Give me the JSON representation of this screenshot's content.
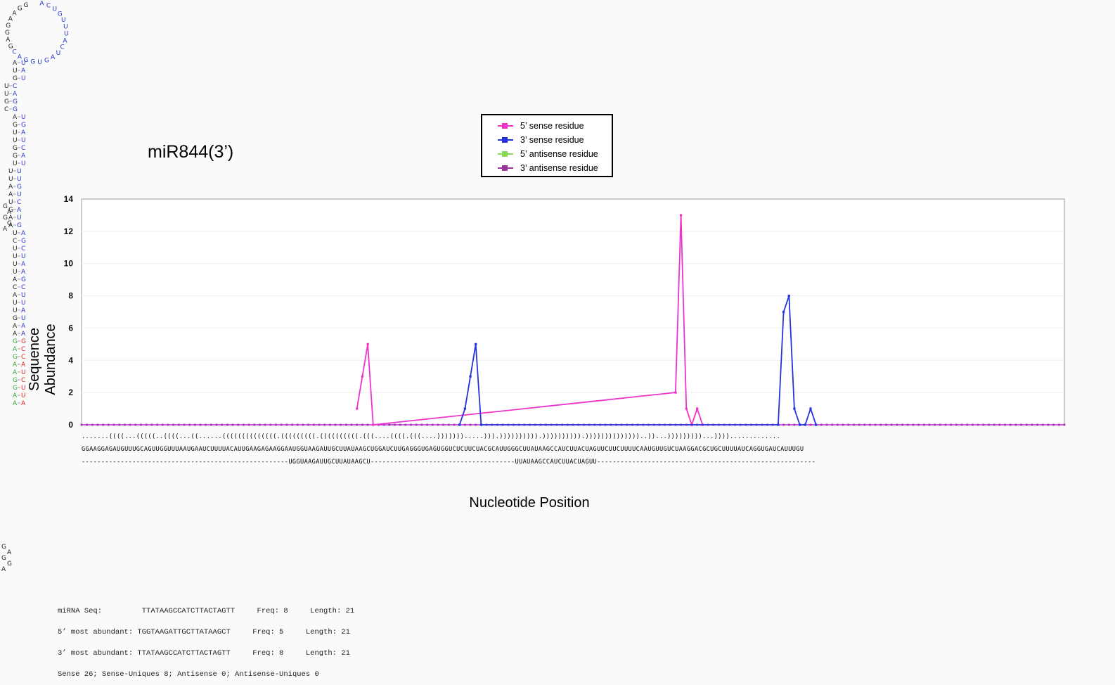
{
  "title": "miR844(3’)",
  "legend": [
    {
      "label": "5’ sense residue",
      "color": "#ee33cc"
    },
    {
      "label": "3’ sense residue",
      "color": "#2233dd"
    },
    {
      "label": "5’ antisense residue",
      "color": "#88dd55"
    },
    {
      "label": "3’ antisense residue",
      "color": "#993399"
    }
  ],
  "chart_data": {
    "type": "line",
    "title": "miR844(3’)",
    "xlabel": "Nucleotide Position",
    "ylabel": "Sequence Abundance",
    "ylim": [
      0,
      14
    ],
    "yticks": [
      0,
      2,
      4,
      6,
      8,
      10,
      12,
      14
    ],
    "x_range": [
      1,
      183
    ],
    "grid": true,
    "legend_position": "top-center",
    "series": [
      {
        "name": "5’ sense residue",
        "color": "#ee33cc",
        "points": [
          [
            52,
            1
          ],
          [
            53,
            3
          ],
          [
            54,
            5
          ],
          [
            55,
            0
          ],
          [
            111,
            2
          ],
          [
            112,
            13
          ],
          [
            113,
            1
          ],
          [
            114,
            0
          ],
          [
            115,
            1
          ],
          [
            116,
            0
          ]
        ]
      },
      {
        "name": "3’ sense residue",
        "color": "#2233dd",
        "points": [
          [
            71,
            0
          ],
          [
            72,
            1
          ],
          [
            73,
            3
          ],
          [
            74,
            5
          ],
          [
            75,
            0
          ],
          [
            130,
            0
          ],
          [
            131,
            7
          ],
          [
            132,
            8
          ],
          [
            133,
            1
          ],
          [
            134,
            0
          ],
          [
            135,
            0
          ],
          [
            136,
            1
          ],
          [
            137,
            0
          ]
        ]
      },
      {
        "name": "5’ antisense residue",
        "color": "#88dd55",
        "points": []
      },
      {
        "name": "3’ antisense residue",
        "color": "#993399",
        "points": []
      }
    ]
  },
  "sequences": {
    "structure": ".......((((...(((((..((((...((......((((((((((((((.(((((((((.((((((((((.(((....((((.(((....))))))).....))).)))))))))).)))))))))).))))))))))))))..))...)))))))))...)))).............",
    "precursor": "GGAAGGAGAUGUUUGCAGUUGGUUUAAUGAAUCUUUUACAUUGAAGAGAAGGAAUGGUAAGAUUGCUUAUAAGCUGGAUCUUGAGGGUGAGUGGUCUCUUCUACGCAUUGGGCUUAUAAGCCAUCUUACUAGUUCUUCUUUUCAAUGUUGUCUAAGGACGCUGCUUUUAUCAGGUGAUCAUUUGU",
    "mature": "-----------------------------------------------------UGGUAAGAUUGCUUAUAAGCU-------------------------------------UUAUAAGCCAUCUUACUAGUU--------------------------------------------------------"
  },
  "info": [
    "miRNA Seq:         TTATAAGCCATCTTACTAGTT     Freq: 8     Length: 21",
    "5’ most abundant: TGGTAAGATTGCTTATAAGCT     Freq: 5     Length: 21",
    "3’ most abundant: TTATAAGCCATCTTACTAGTT     Freq: 8     Length: 21",
    "Sense 26; Sense-Uniques 8; Antisense 0; Antisense-Uniques 0"
  ],
  "hairpin": {
    "colors": {
      "black": "#222222",
      "blue": "#2233cc",
      "red": "#dd2222",
      "green": "#33aa33"
    },
    "terminal_loop": "GGAAGGAGCAGGUGAUCAUUUGUCA",
    "left_loop": "GAGGA",
    "pairs_left": "AUGUUGCAGUUGGUUUAAUGAAUCUUUUACAUUGAAGAGAAGGAA",
    "pairs_right": "UAUCAGGUGAUCAUUUGUCAUGAGCUAAGCUUAUAAGCCAUCUUAC"
  }
}
